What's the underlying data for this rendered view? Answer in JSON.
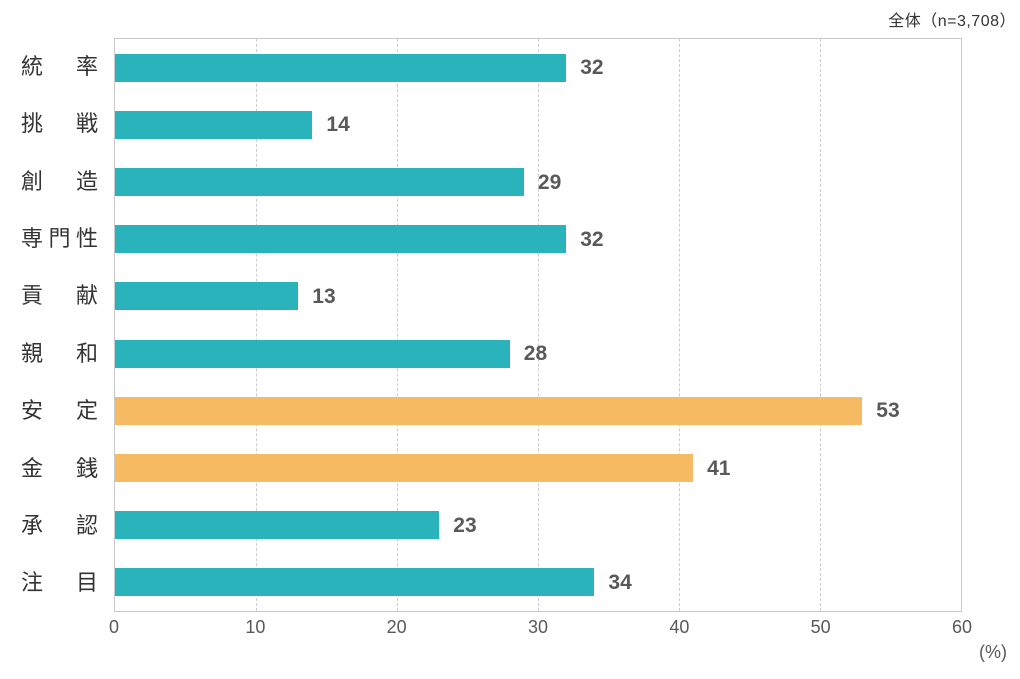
{
  "header": {
    "title": "全体（n=3,708）"
  },
  "colors": {
    "bar_default": "#2ab3ba",
    "bar_highlight": "#f6bb62",
    "grid": "#cccccc",
    "plot_border": "#c9c9c9",
    "value_text": "#595959",
    "axis_text": "#595959",
    "category_text": "#333333",
    "background": "#ffffff"
  },
  "chart_data": {
    "type": "bar",
    "orientation": "horizontal",
    "title": "全体（n=3,708）",
    "categories": [
      "統率",
      "挑戦",
      "創造",
      "専門性",
      "貢献",
      "親和",
      "安定",
      "金銭",
      "承認",
      "注目"
    ],
    "values": [
      32,
      14,
      29,
      32,
      13,
      28,
      53,
      41,
      23,
      34
    ],
    "bar_colors_hex": [
      "#2ab3ba",
      "#2ab3ba",
      "#2ab3ba",
      "#2ab3ba",
      "#2ab3ba",
      "#2ab3ba",
      "#f6bb62",
      "#f6bb62",
      "#2ab3ba",
      "#2ab3ba"
    ],
    "xlabel": "",
    "ylabel": "",
    "x_unit_label": "(%)",
    "xlim": [
      0,
      60
    ],
    "x_ticks": [
      0,
      10,
      20,
      30,
      40,
      50,
      60
    ],
    "grid": "vertical-dashed",
    "legend": "none",
    "value_labels": "end-of-bar"
  }
}
